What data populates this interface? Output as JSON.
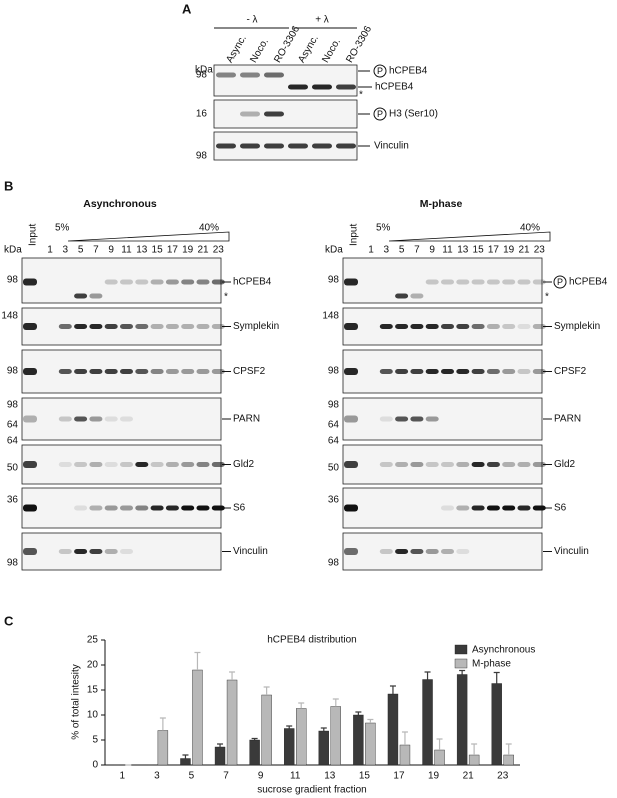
{
  "panel_a": {
    "label": "A",
    "kda": "kDa",
    "groups": [
      "- λ",
      "+ λ"
    ],
    "lanes": [
      "Async.",
      "Noco.",
      "RO-3306",
      "Async.",
      "Noco.",
      "RO-3306"
    ],
    "blots": [
      {
        "markers": [
          "98"
        ],
        "phospho": "P",
        "label": "hCPEB4",
        "label2": "hCPEB4",
        "asterisk": "*"
      },
      {
        "markers": [
          "16"
        ],
        "phospho": "P",
        "label": "H3 (Ser10)"
      },
      {
        "markers": [
          "98"
        ],
        "label": "Vinculin"
      }
    ]
  },
  "panel_b": {
    "label": "B",
    "kda": "kDa",
    "input": "Input",
    "low": "5%",
    "high": "40%",
    "fractions": [
      "1",
      "3",
      "5",
      "7",
      "9",
      "11",
      "13",
      "15",
      "17",
      "19",
      "21",
      "23"
    ],
    "conditions": [
      {
        "title": "Asynchronous",
        "blots": [
          {
            "label": "hCPEB4",
            "markers": [
              "98"
            ],
            "asterisk": "*"
          },
          {
            "label": "Symplekin",
            "markers": [
              "148"
            ]
          },
          {
            "label": "CPSF2",
            "markers": [
              "98"
            ]
          },
          {
            "label": "PARN",
            "markers": [
              "98",
              "64"
            ]
          },
          {
            "label": "Gld2",
            "markers": [
              "64",
              "50"
            ]
          },
          {
            "label": "S6",
            "markers": [
              "36"
            ]
          },
          {
            "label": "Vinculin",
            "markers": [
              "98"
            ]
          }
        ]
      },
      {
        "title": "M-phase",
        "blots": [
          {
            "label": "hCPEB4",
            "phospho": "P",
            "markers": [
              "98"
            ],
            "asterisk": "*"
          },
          {
            "label": "Symplekin",
            "markers": [
              "148"
            ]
          },
          {
            "label": "CPSF2",
            "markers": [
              "98"
            ]
          },
          {
            "label": "PARN",
            "markers": [
              "98",
              "64"
            ]
          },
          {
            "label": "Gld2",
            "markers": [
              "64",
              "50"
            ]
          },
          {
            "label": "S6",
            "markers": [
              "36"
            ]
          },
          {
            "label": "Vinculin",
            "markers": [
              "98"
            ]
          }
        ]
      }
    ]
  },
  "chart_data": {
    "type": "bar",
    "panel_label": "C",
    "title": "hCPEB4 distribution",
    "ylabel": "% of total intesity",
    "xlabel": "sucrose gradient fraction",
    "categories": [
      "1",
      "3",
      "5",
      "7",
      "9",
      "11",
      "13",
      "15",
      "17",
      "19",
      "21",
      "23"
    ],
    "series": [
      {
        "name": "Asynchronous",
        "color": "#3a3a3a",
        "values": [
          0,
          0,
          1.3,
          3.6,
          5,
          7.3,
          6.8,
          10,
          14.2,
          17.1,
          18.1,
          16.3
        ],
        "errors": [
          0,
          0,
          0.7,
          0.6,
          0.3,
          0.5,
          0.6,
          0.6,
          1.6,
          1.5,
          0.8,
          2.2
        ]
      },
      {
        "name": "M-phase",
        "color": "#b8b8b8",
        "values": [
          0,
          6.9,
          19,
          17,
          14,
          11.3,
          11.7,
          8.4,
          4,
          3,
          2,
          2
        ],
        "errors": [
          0,
          2.5,
          3.5,
          1.6,
          1.6,
          1.1,
          1.5,
          0.7,
          2.6,
          2.2,
          2.2,
          2.2
        ]
      }
    ],
    "ylim": [
      0,
      25
    ],
    "yticks": [
      0,
      5,
      10,
      15,
      20,
      25
    ],
    "legend": "upper right"
  }
}
